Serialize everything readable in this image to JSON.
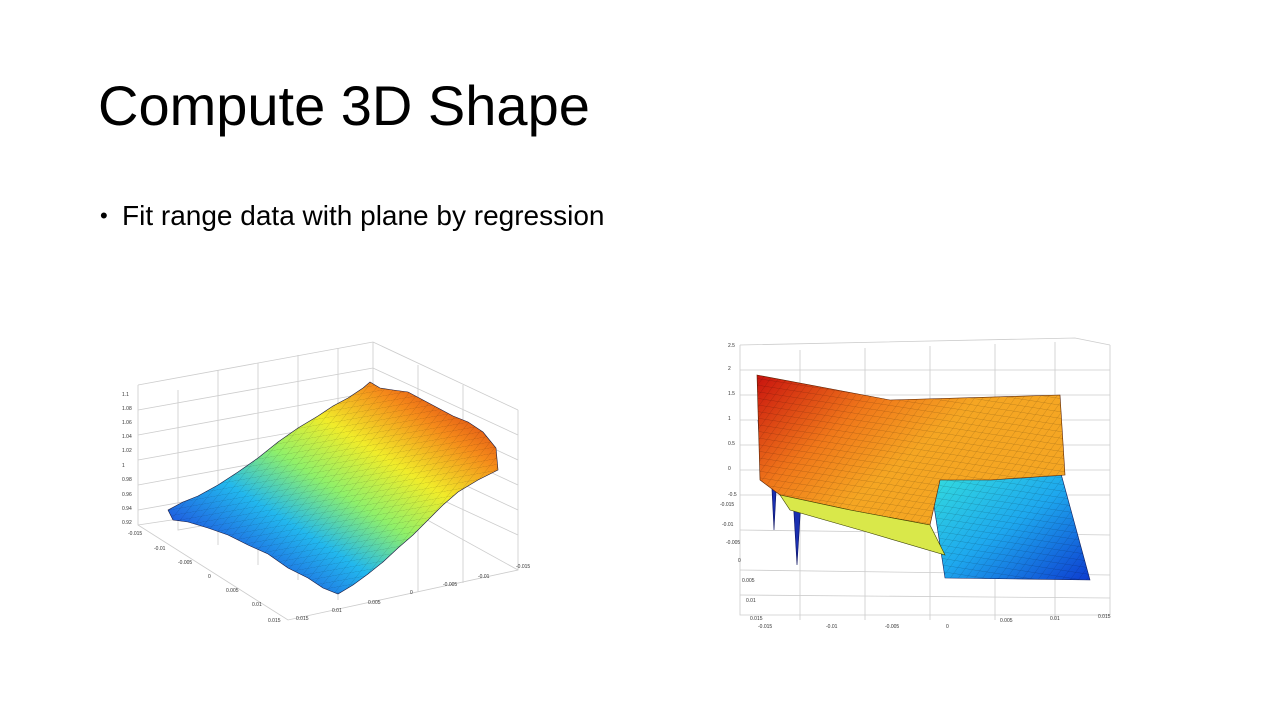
{
  "slide": {
    "title": "Compute 3D Shape",
    "bullets": [
      "Fit range data with plane by regression"
    ]
  },
  "figures": {
    "left": {
      "z_ticks": [
        "0.92",
        "0.94",
        "0.96",
        "0.98",
        "1",
        "1.02",
        "1.04",
        "1.06",
        "1.08",
        "1.1"
      ],
      "y_ticks": [
        "-0.015",
        "-0.01",
        "-0.005",
        "0",
        "0.005",
        "0.01",
        "0.015"
      ],
      "x_ticks": [
        "-0.015",
        "-0.01",
        "-0.005",
        "0",
        "0.005",
        "0.01",
        "0.015"
      ]
    },
    "right": {
      "z_ticks": [
        "-0.5",
        "0",
        "0.5",
        "1",
        "1.5",
        "2",
        "2.5"
      ],
      "y_ticks": [
        "-0.015",
        "-0.01",
        "-0.005",
        "0",
        "0.005",
        "0.01",
        "0.015"
      ],
      "x_ticks": [
        "-0.015",
        "-0.01",
        "-0.005",
        "0",
        "0.005",
        "0.01",
        "0.015"
      ]
    }
  }
}
